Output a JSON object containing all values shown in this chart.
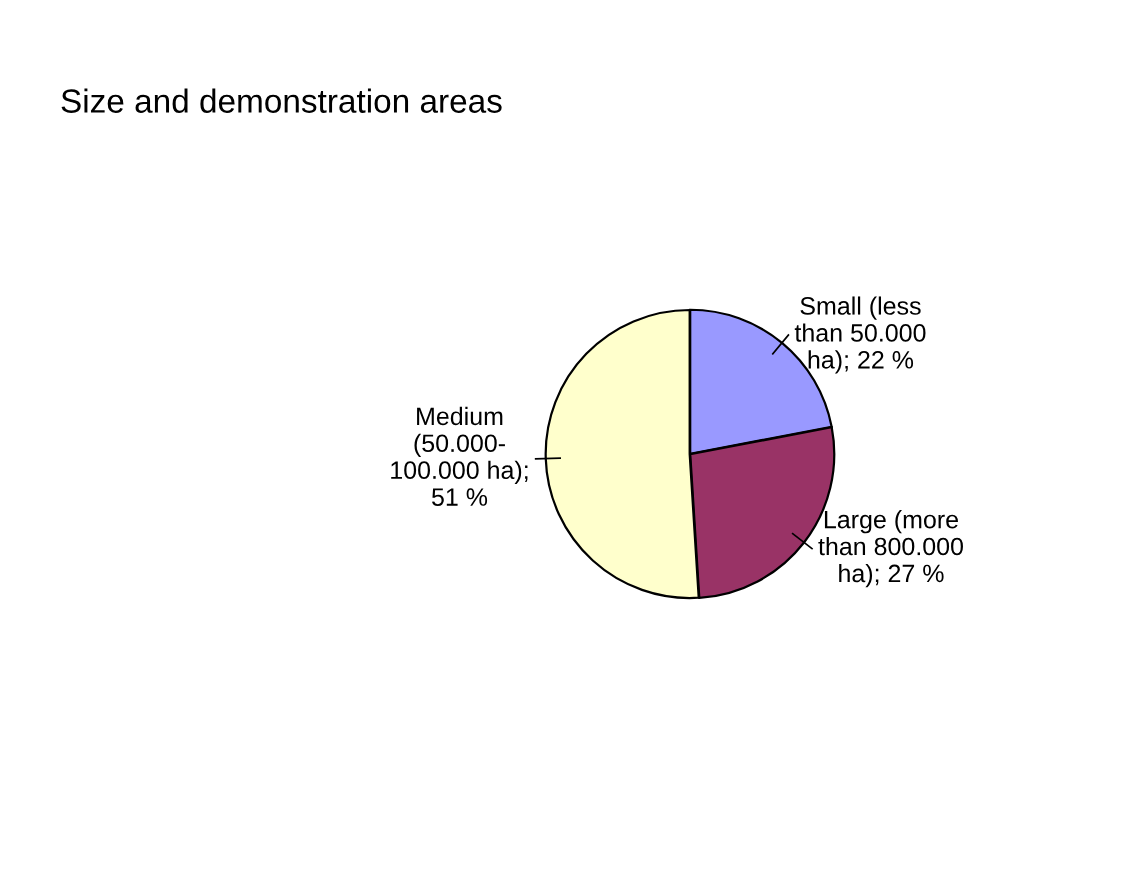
{
  "chart_data": {
    "type": "pie",
    "title": "Size and demonstration areas",
    "categories": [
      "Small (less\nthan 50.000\nha); 22 %",
      "Large (more\nthan 800.000\nha); 27 %",
      "Medium\n(50.000-\n100.000 ha);\n51 %"
    ],
    "values": [
      22,
      27,
      51
    ],
    "colors": [
      "#9999ff",
      "#993366",
      "#ffffcc"
    ]
  }
}
